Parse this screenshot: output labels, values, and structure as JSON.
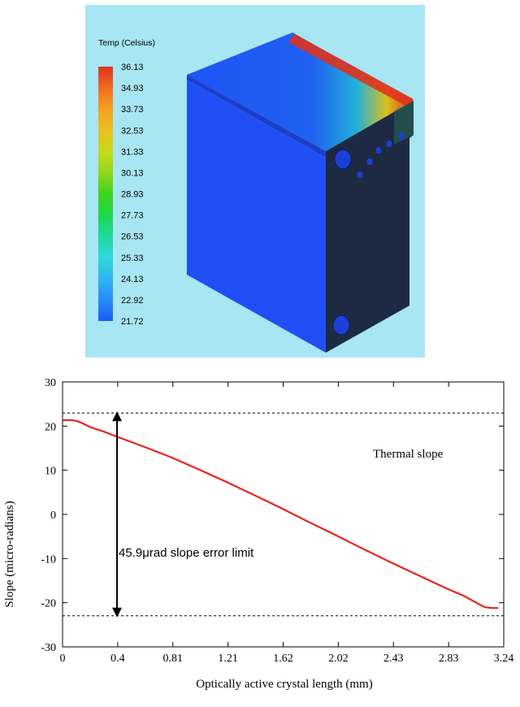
{
  "thermal_model": {
    "background_color": "#a8e6f4",
    "legend_title": "Temp (Celsius)",
    "legend_values": [
      "36.13",
      "34.93",
      "33.73",
      "32.53",
      "31.33",
      "30.13",
      "28.93",
      "27.73",
      "26.53",
      "25.33",
      "24.13",
      "22.92",
      "21.72"
    ],
    "colormap": [
      "#e0321e",
      "#f06a1e",
      "#f4a020",
      "#e8c020",
      "#c8d81a",
      "#90d81a",
      "#40d21e",
      "#1ed848",
      "#1ed8a0",
      "#30d8d8",
      "#30b4f0",
      "#2a8cf8",
      "#1a5cf6"
    ],
    "block_face_color": "#1f4ff5",
    "block_side_color": "#1e2a44"
  },
  "chart_data": {
    "type": "line",
    "xlabel": "Optically active crystal length (mm)",
    "ylabel": "Slope (micro-radians)",
    "xlim": [
      0,
      3.24
    ],
    "ylim": [
      -30,
      30
    ],
    "x_ticks": [
      "0",
      "0.4",
      "0.81",
      "1.21",
      "1.62",
      "2.02",
      "2.43",
      "2.83",
      "3.24"
    ],
    "y_ticks": [
      "30",
      "20",
      "10",
      "0",
      "-10",
      "-20",
      "-30"
    ],
    "series": [
      {
        "name": "Thermal slope",
        "color": "#e8231c",
        "x": [
          0,
          0.05,
          0.1,
          0.15,
          0.2,
          0.3,
          0.4,
          0.6,
          0.8,
          1.0,
          1.2,
          1.4,
          1.6,
          1.8,
          2.0,
          2.2,
          2.4,
          2.6,
          2.8,
          2.95,
          3.05,
          3.1,
          3.15,
          3.2
        ],
        "y": [
          21.3,
          21.4,
          21.2,
          20.6,
          19.8,
          18.8,
          17.6,
          15.3,
          12.9,
          10.2,
          7.4,
          4.5,
          1.5,
          -1.6,
          -4.6,
          -7.7,
          -10.7,
          -13.6,
          -16.5,
          -18.5,
          -20.2,
          -21.0,
          -21.2,
          -21.2
        ]
      }
    ],
    "limit_lines": [
      22.95,
      -22.95
    ],
    "annotation_arrow": {
      "x": 0.4,
      "y_top": 22.95,
      "y_bottom": -22.95
    },
    "annotations": {
      "series_label": "Thermal slope",
      "error_limit": "45.9μrad slope error limit"
    }
  }
}
